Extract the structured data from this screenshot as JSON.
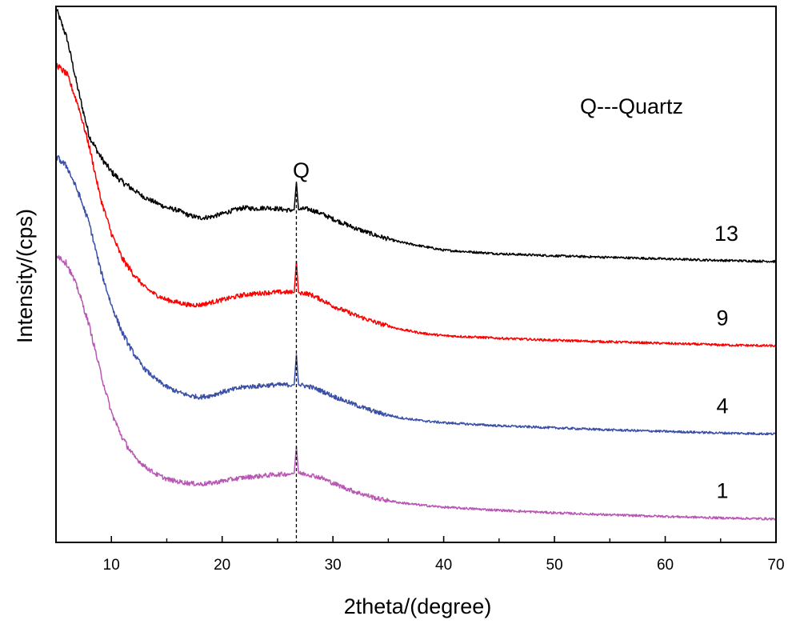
{
  "chart_data": {
    "type": "line",
    "title": "",
    "xlabel": "2theta/(degree)",
    "ylabel": "Intensity/(cps)",
    "xlim": [
      5,
      70
    ],
    "ylim": [
      0,
      100
    ],
    "x_ticks": [
      10,
      20,
      30,
      40,
      50,
      60,
      70
    ],
    "x_tick_labels": [
      "10",
      "20",
      "30",
      "40",
      "50",
      "60",
      "70"
    ],
    "y_ticks_labeled": false,
    "annotations": [
      {
        "text": "Q---Quartz",
        "kind": "legend-note"
      },
      {
        "text": "Q",
        "kind": "peak-marker",
        "x": 26.7
      }
    ],
    "series": [
      {
        "name": "13",
        "color": "#000000",
        "x": [
          5,
          6,
          7,
          8,
          9,
          10,
          11,
          12,
          13,
          14,
          15,
          16,
          17,
          18,
          19,
          20,
          21,
          22,
          23,
          24,
          25,
          26,
          26.5,
          26.7,
          26.9,
          27.5,
          28,
          29,
          30,
          32,
          34,
          36,
          38,
          40,
          45,
          50,
          55,
          60,
          65,
          70
        ],
        "values": [
          100,
          94,
          84,
          75,
          71,
          68,
          66,
          64.5,
          63,
          62,
          61,
          60.5,
          59.5,
          59,
          59.2,
          59.8,
          60.5,
          61,
          60.8,
          61,
          60.8,
          60.5,
          60.6,
          66,
          60.6,
          60.8,
          60.6,
          59.8,
          58.8,
          57,
          55.5,
          54.3,
          53.5,
          52.7,
          52,
          51.6,
          51.3,
          51,
          50.7,
          50.5
        ]
      },
      {
        "name": "9",
        "color": "#ff0000",
        "x": [
          5,
          6,
          7,
          8,
          9,
          10,
          11,
          12,
          13,
          14,
          15,
          16,
          17,
          18,
          19,
          20,
          21,
          22,
          23,
          24,
          25,
          26,
          26.5,
          26.7,
          26.9,
          27.5,
          28,
          29,
          30,
          32,
          34,
          36,
          38,
          40,
          45,
          50,
          55,
          60,
          65,
          70
        ],
        "values": [
          89,
          87,
          81,
          73,
          63,
          56,
          51,
          48,
          45.5,
          44,
          43,
          42.5,
          42,
          42,
          42.5,
          43,
          43.5,
          44,
          44.2,
          44.4,
          44.5,
          44.5,
          44.4,
          50.5,
          44.4,
          44.3,
          44,
          43,
          41.8,
          40,
          38.5,
          37.3,
          36.5,
          36,
          35.5,
          35.1,
          34.8,
          34.5,
          34.2,
          34
        ]
      },
      {
        "name": "4",
        "color": "#3a4fa8",
        "x": [
          5,
          6,
          7,
          8,
          9,
          10,
          11,
          12,
          13,
          14,
          15,
          16,
          17,
          18,
          19,
          20,
          21,
          22,
          23,
          24,
          25,
          26,
          26.5,
          26.7,
          26.9,
          27.5,
          28,
          29,
          30,
          32,
          34,
          36,
          38,
          40,
          45,
          50,
          55,
          60,
          65,
          70
        ],
        "values": [
          71,
          69,
          64,
          58,
          49,
          42,
          36.5,
          32.5,
          29.5,
          27.5,
          26,
          25,
          24.3,
          24,
          24.3,
          25,
          25.5,
          26,
          26.1,
          26.3,
          26.4,
          26.4,
          26.4,
          32.3,
          26.4,
          26.2,
          26,
          25.2,
          24.2,
          22.5,
          21,
          20,
          19.4,
          19,
          18.4,
          18,
          17.6,
          17.3,
          17,
          16.8
        ]
      },
      {
        "name": "1",
        "color": "#b857b4",
        "x": [
          5,
          6,
          7,
          8,
          9,
          10,
          11,
          12,
          13,
          14,
          15,
          16,
          17,
          18,
          19,
          20,
          21,
          22,
          23,
          24,
          25,
          26,
          26.5,
          26.7,
          26.9,
          27.5,
          28,
          29,
          30,
          32,
          34,
          36,
          38,
          40,
          45,
          50,
          55,
          60,
          65,
          70
        ],
        "values": [
          52,
          50,
          45,
          38,
          29,
          21,
          16,
          12.5,
          10.5,
          9,
          8,
          7.5,
          7.2,
          7,
          7.2,
          7.6,
          8,
          8.3,
          8.5,
          8.7,
          8.9,
          9,
          9.1,
          14.3,
          9.1,
          9,
          8.8,
          8.2,
          7.2,
          5.5,
          4.2,
          3.4,
          2.9,
          2.5,
          1.9,
          1.4,
          1,
          0.7,
          0.4,
          0.2
        ]
      }
    ]
  }
}
